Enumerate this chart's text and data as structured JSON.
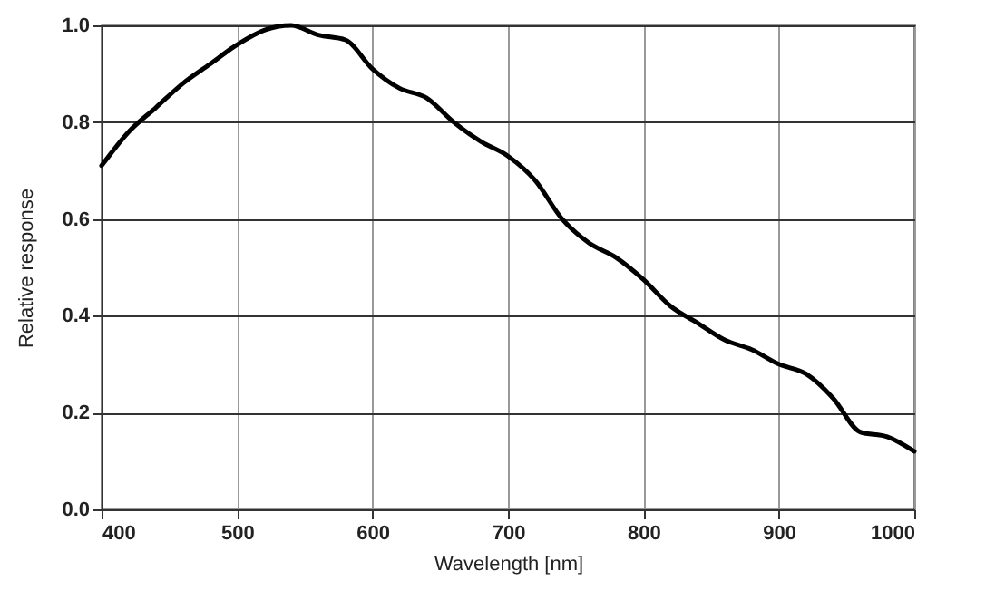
{
  "chart_data": {
    "type": "line",
    "xlabel": "Wavelength [nm]",
    "ylabel": "Relative response",
    "x": [
      400,
      420,
      440,
      460,
      480,
      500,
      520,
      540,
      560,
      580,
      600,
      620,
      640,
      660,
      680,
      700,
      720,
      740,
      760,
      780,
      800,
      820,
      840,
      860,
      880,
      900,
      920,
      940,
      960,
      980,
      1000
    ],
    "series": [
      {
        "color": "#000000",
        "values": [
          0.71,
          0.78,
          0.83,
          0.88,
          0.92,
          0.96,
          0.99,
          1.0,
          0.98,
          0.97,
          0.91,
          0.87,
          0.85,
          0.8,
          0.76,
          0.73,
          0.68,
          0.6,
          0.55,
          0.52,
          0.475,
          0.42,
          0.385,
          0.35,
          0.33,
          0.3,
          0.28,
          0.23,
          0.16,
          0.15,
          0.12
        ]
      }
    ],
    "xlim": [
      400,
      1000
    ],
    "xticks": [
      400,
      500,
      600,
      700,
      800,
      900,
      1000
    ],
    "ylim": [
      0,
      1
    ],
    "yticks": [
      {
        "value": 0,
        "label": "0.0"
      },
      {
        "value": 0.2,
        "label": "0.2"
      },
      {
        "value": 0.4,
        "label": "0.4"
      },
      {
        "value": 0.6,
        "label": "0.6"
      },
      {
        "value": 0.8,
        "label": "0.8"
      },
      {
        "value": 1,
        "label": "1.0"
      }
    ],
    "grid": true,
    "marker": "none",
    "line_style": "solid"
  }
}
